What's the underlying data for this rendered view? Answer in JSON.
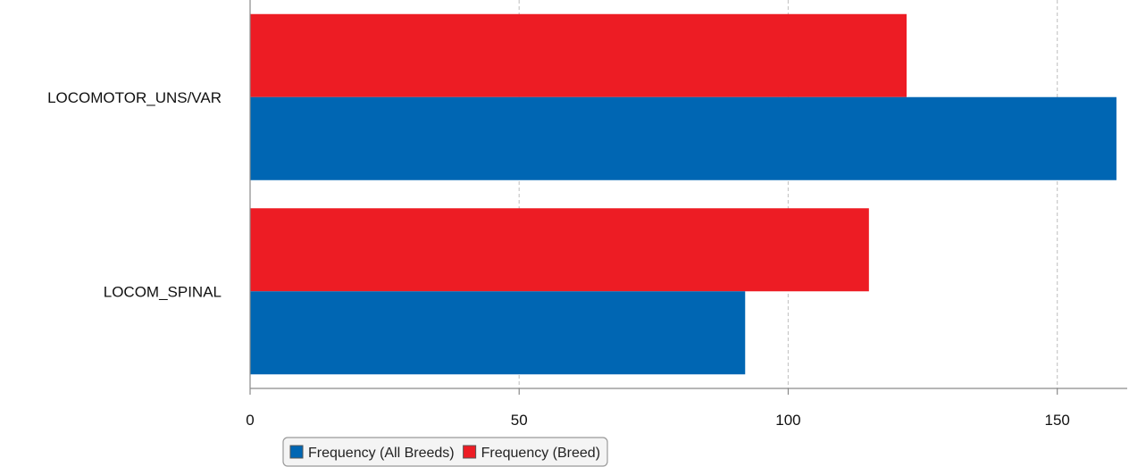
{
  "chart_data": {
    "type": "bar",
    "orientation": "horizontal",
    "categories": [
      "LOCOMOTOR_UNS/VAR",
      "LOCOM_SPINAL"
    ],
    "series": [
      {
        "name": "Frequency (Breed)",
        "color": "#ed1c24",
        "values": [
          122,
          115
        ]
      },
      {
        "name": "Frequency (All Breeds)",
        "color": "#0066b3",
        "values": [
          161,
          92
        ]
      }
    ],
    "xlim": [
      0,
      163
    ],
    "xticks": [
      0,
      50,
      100,
      150
    ],
    "grid": true,
    "legend_position": "bottom-left",
    "legend": [
      "Frequency (All Breeds)",
      "Frequency (Breed)"
    ]
  }
}
